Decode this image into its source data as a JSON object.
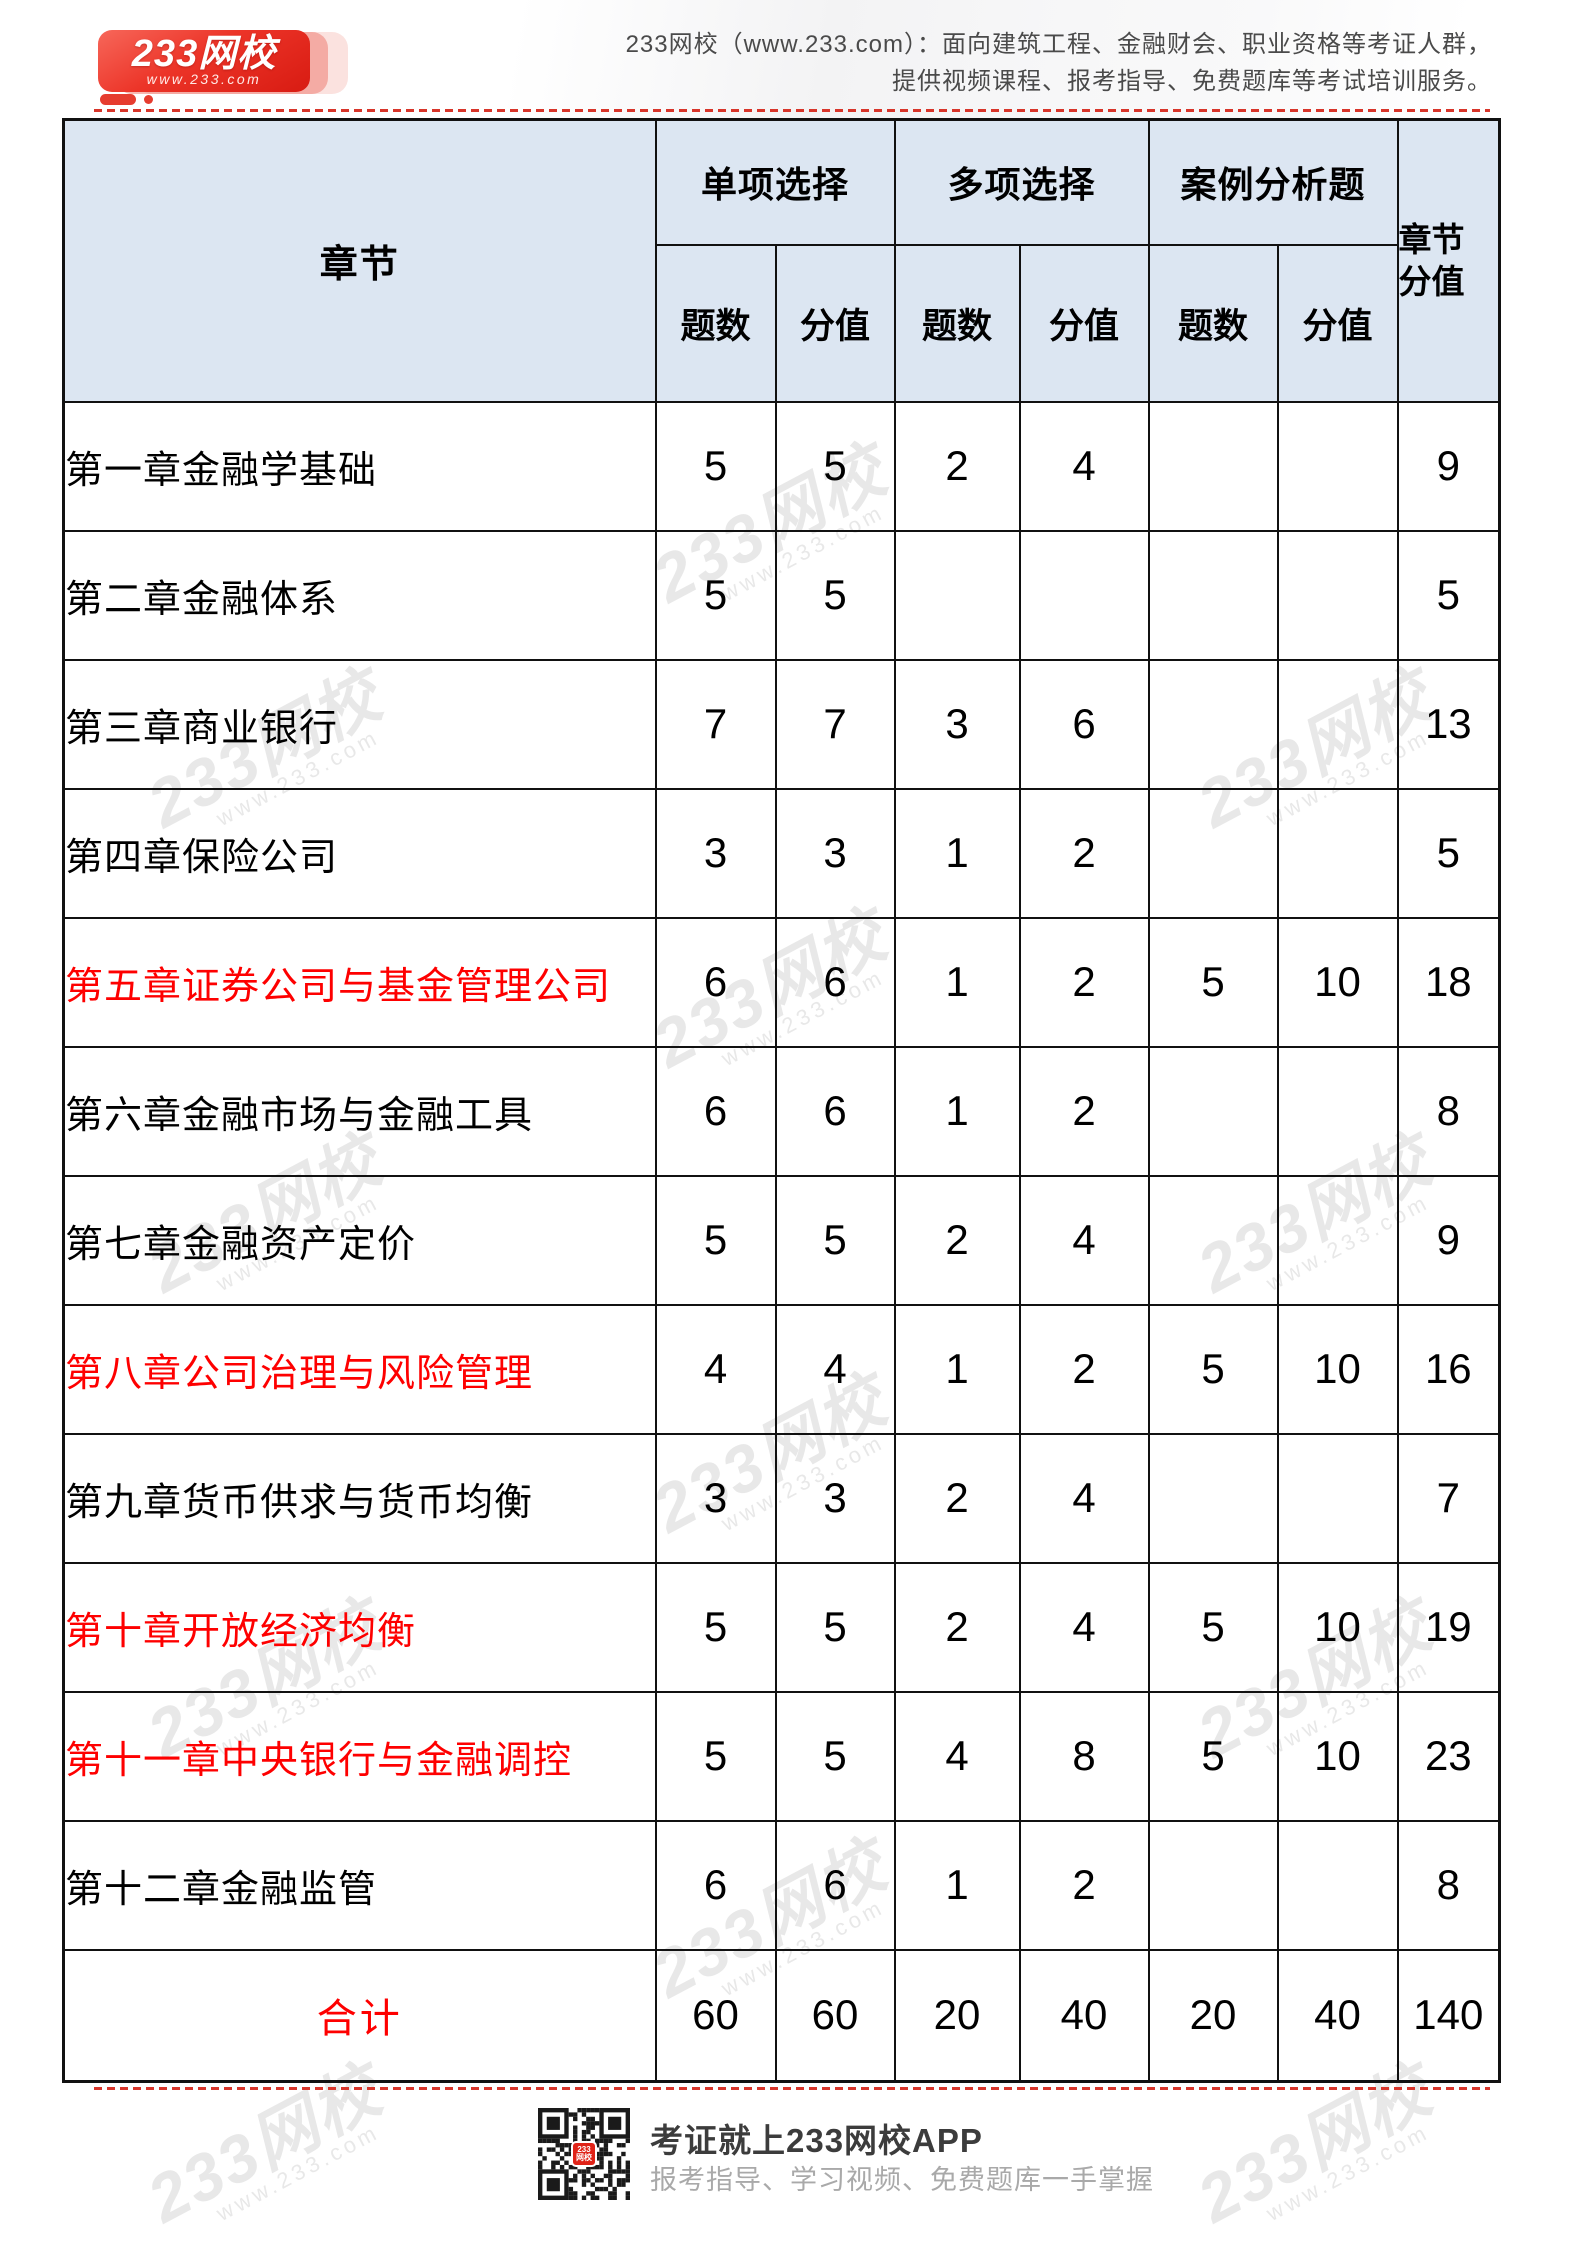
{
  "brand": {
    "logo_title": "233网校",
    "logo_url": "www.233.com",
    "slogan_line1": "233网校（www.233.com）：面向建筑工程、金融财会、职业资格等考证人群，",
    "slogan_line2": "提供视频课程、报考指导、免费题库等考试培训服务。"
  },
  "watermark": {
    "line1": "233网校",
    "line2": "www.233.com"
  },
  "table": {
    "header": {
      "chapter": "章节",
      "groups": [
        {
          "label": "单项选择"
        },
        {
          "label": "多项选择"
        },
        {
          "label": "案例分析题"
        }
      ],
      "sub_cols": [
        "题数",
        "分值",
        "题数",
        "分值",
        "题数",
        "分值"
      ],
      "chapter_score": "章节\n分值"
    },
    "rows": [
      {
        "name": "第一章金融学基础",
        "highlight": false,
        "is_total": false,
        "values": [
          "5",
          "5",
          "2",
          "4",
          "",
          "",
          "9"
        ]
      },
      {
        "name": "第二章金融体系",
        "highlight": false,
        "is_total": false,
        "values": [
          "5",
          "5",
          "",
          "",
          "",
          "",
          "5"
        ]
      },
      {
        "name": "第三章商业银行",
        "highlight": false,
        "is_total": false,
        "values": [
          "7",
          "7",
          "3",
          "6",
          "",
          "",
          "13"
        ]
      },
      {
        "name": "第四章保险公司",
        "highlight": false,
        "is_total": false,
        "values": [
          "3",
          "3",
          "1",
          "2",
          "",
          "",
          "5"
        ]
      },
      {
        "name": "第五章证券公司与基金管理公司",
        "highlight": true,
        "is_total": false,
        "values": [
          "6",
          "6",
          "1",
          "2",
          "5",
          "10",
          "18"
        ]
      },
      {
        "name": "第六章金融市场与金融工具",
        "highlight": false,
        "is_total": false,
        "values": [
          "6",
          "6",
          "1",
          "2",
          "",
          "",
          "8"
        ]
      },
      {
        "name": "第七章金融资产定价",
        "highlight": false,
        "is_total": false,
        "values": [
          "5",
          "5",
          "2",
          "4",
          "",
          "",
          "9"
        ]
      },
      {
        "name": "第八章公司治理与风险管理",
        "highlight": true,
        "is_total": false,
        "values": [
          "4",
          "4",
          "1",
          "2",
          "5",
          "10",
          "16"
        ]
      },
      {
        "name": "第九章货币供求与货币均衡",
        "highlight": false,
        "is_total": false,
        "values": [
          "3",
          "3",
          "2",
          "4",
          "",
          "",
          "7"
        ]
      },
      {
        "name": "第十章开放经济均衡",
        "highlight": true,
        "is_total": false,
        "values": [
          "5",
          "5",
          "2",
          "4",
          "5",
          "10",
          "19"
        ]
      },
      {
        "name": "第十一章中央银行与金融调控",
        "highlight": true,
        "is_total": false,
        "values": [
          "5",
          "5",
          "4",
          "8",
          "5",
          "10",
          "23"
        ]
      },
      {
        "name": "第十二章金融监管",
        "highlight": false,
        "is_total": false,
        "values": [
          "6",
          "6",
          "1",
          "2",
          "",
          "",
          "8"
        ]
      },
      {
        "name": "合计",
        "highlight": true,
        "is_total": true,
        "values": [
          "60",
          "60",
          "20",
          "40",
          "20",
          "40",
          "140"
        ]
      }
    ]
  },
  "footer": {
    "app_title": "考证就上233网校APP",
    "app_sub": "报考指导、学习视频、免费题库一手掌握",
    "qr_label": "233\n网校"
  },
  "colors": {
    "accent_red": "#e02318",
    "text_red": "#fe0000",
    "header_bg": "#dce6f2",
    "border": "#111111",
    "slogan_gray": "#4a4a4a",
    "footer_gray": "#a9a9a9",
    "watermark_gray": "#d2d2d2"
  }
}
